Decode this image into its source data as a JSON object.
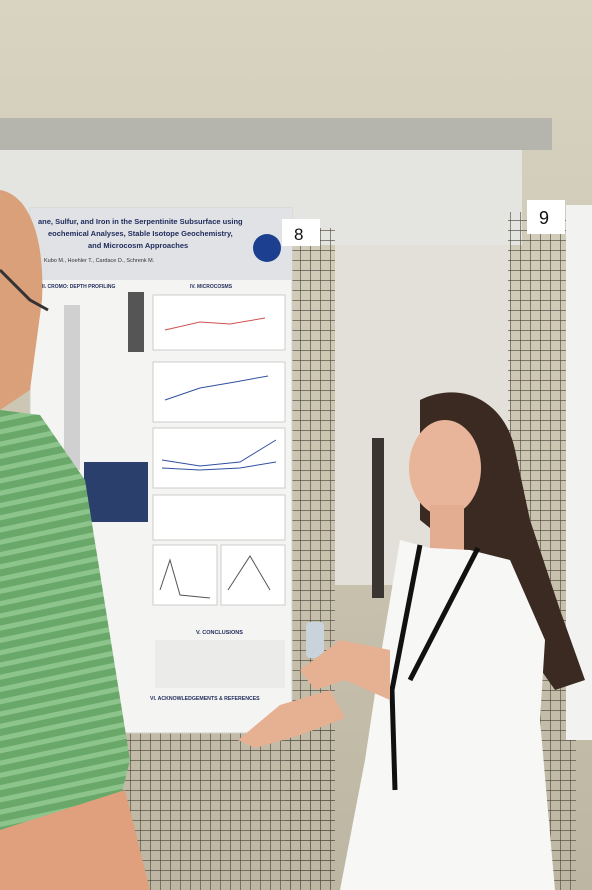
{
  "poster": {
    "title_lines": [
      "ane, Sulfur, and Iron in the Serpentinite Subsurface using",
      "eochemical Analyses, Stable Isotope Geochemistry,",
      "and Microcosm Approaches"
    ],
    "authors": "Kubo M., Hoehler T., Cardace D., Schrenk M.",
    "sections": [
      "II. CROMO: DEPTH PROFILING",
      "IV. MICROCOSMS",
      "V. CONCLUSIONS",
      "VI. ACKNOWLEDGEMENTS & REFERENCES"
    ]
  },
  "board_numbers": [
    "8",
    "9"
  ]
}
